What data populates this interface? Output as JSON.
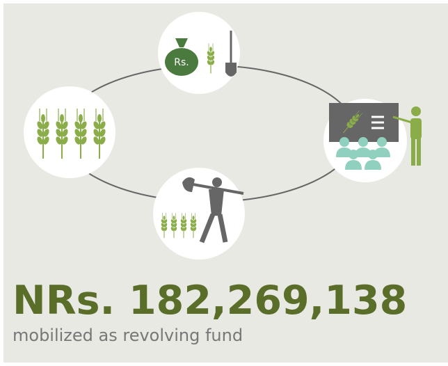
{
  "icons": {
    "money_bag_label": "Rs."
  },
  "headline": "NRs. 182,269,138",
  "caption": "mobilized as revolving fund"
}
